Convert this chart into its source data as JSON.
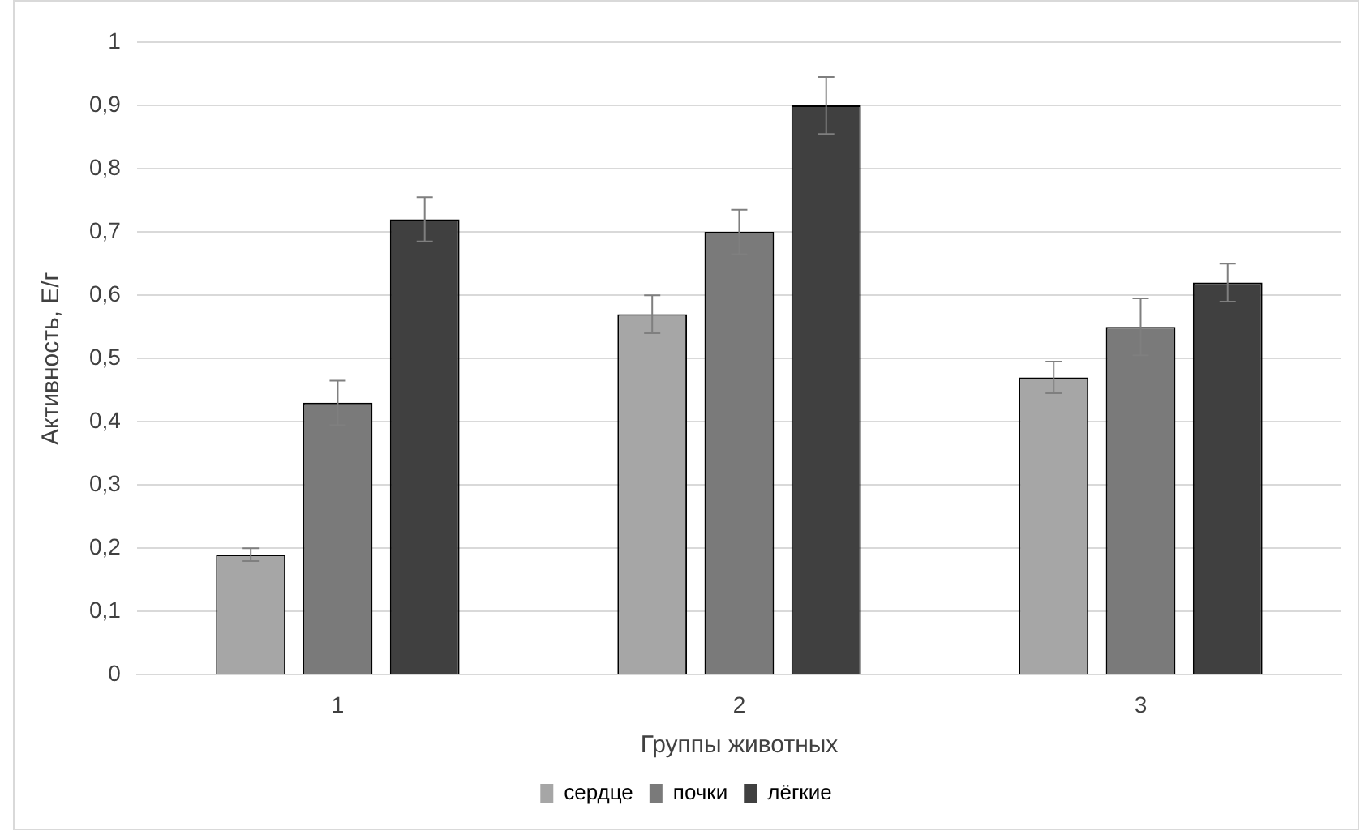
{
  "chart_data": {
    "type": "bar",
    "xlabel": "Группы животных",
    "ylabel": "Активность, Е/г",
    "categories": [
      "1",
      "2",
      "3"
    ],
    "series": [
      {
        "name": "сердце",
        "color": "#a6a6a6",
        "values": [
          0.19,
          0.57,
          0.47
        ],
        "errors": [
          0.01,
          0.03,
          0.025
        ]
      },
      {
        "name": "почки",
        "color": "#7a7a7a",
        "values": [
          0.43,
          0.7,
          0.55
        ],
        "errors": [
          0.035,
          0.035,
          0.045
        ]
      },
      {
        "name": "лёгкие",
        "color": "#404040",
        "values": [
          0.72,
          0.9,
          0.62
        ],
        "errors": [
          0.035,
          0.045,
          0.03
        ]
      }
    ],
    "ylim": [
      0,
      1
    ],
    "yticks": [
      0,
      {
        "value": 0.1,
        "label": "0,1"
      },
      {
        "value": 0.2,
        "label": "0,2"
      },
      {
        "value": 0.3,
        "label": "0,3"
      },
      {
        "value": 0.4,
        "label": "0,4"
      },
      {
        "value": 0.5,
        "label": "0,5"
      },
      {
        "value": 0.6,
        "label": "0,6"
      },
      {
        "value": 0.7,
        "label": "0,7"
      },
      {
        "value": 0.8,
        "label": "0,8"
      },
      {
        "value": 0.9,
        "label": "0,9"
      },
      1
    ],
    "grid": "y",
    "legend": "bottom"
  }
}
